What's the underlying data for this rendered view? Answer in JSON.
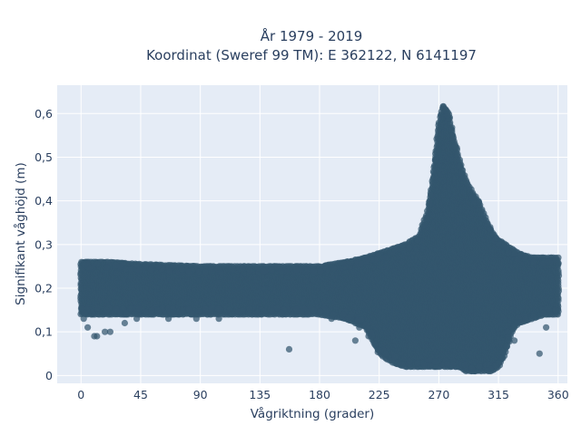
{
  "chart_data": {
    "type": "scatter",
    "title": "År 1979 - 2019",
    "subtitle": "Koordinat (Sweref 99 TM): E 362122, N 6141197",
    "xlabel": "Vågriktning (grader)",
    "ylabel": "Signifikant våghöjd (m)",
    "xlim": [
      -18,
      367
    ],
    "ylim": [
      -0.018,
      0.665
    ],
    "xticks": [
      0,
      45,
      90,
      135,
      180,
      225,
      270,
      315,
      360
    ],
    "xtick_labels": [
      "0",
      "45",
      "90",
      "135",
      "180",
      "225",
      "270",
      "315",
      "360"
    ],
    "yticks": [
      0,
      0.1,
      0.2,
      0.3,
      0.4,
      0.5,
      0.6
    ],
    "ytick_labels": [
      "0",
      "0,1",
      "0,2",
      "0,3",
      "0,4",
      "0,5",
      "0,6"
    ],
    "grid": true,
    "marker_color": "#33566d",
    "background_color": "#e5ecf6",
    "envelope": {
      "x": [
        0,
        20,
        45,
        90,
        135,
        180,
        200,
        215,
        225,
        235,
        245,
        255,
        262,
        266,
        270,
        273,
        275,
        278,
        280,
        285,
        290,
        295,
        300,
        305,
        310,
        315,
        320,
        325,
        330,
        340,
        350,
        360
      ],
      "y_max": [
        0.26,
        0.26,
        0.255,
        0.25,
        0.25,
        0.25,
        0.26,
        0.27,
        0.28,
        0.29,
        0.3,
        0.32,
        0.38,
        0.47,
        0.58,
        0.62,
        0.61,
        0.6,
        0.56,
        0.5,
        0.45,
        0.42,
        0.4,
        0.36,
        0.33,
        0.31,
        0.3,
        0.29,
        0.28,
        0.27,
        0.27,
        0.27
      ],
      "y_min": [
        0.14,
        0.14,
        0.14,
        0.14,
        0.14,
        0.14,
        0.13,
        0.11,
        0.05,
        0.03,
        0.02,
        0.02,
        0.02,
        0.02,
        0.02,
        0.02,
        0.02,
        0.02,
        0.02,
        0.02,
        0.01,
        0.01,
        0.01,
        0.01,
        0.01,
        0.02,
        0.05,
        0.1,
        0.12,
        0.13,
        0.14,
        0.14
      ]
    },
    "outliers": [
      {
        "x": 2,
        "y": 0.13
      },
      {
        "x": 5,
        "y": 0.11
      },
      {
        "x": 10,
        "y": 0.09
      },
      {
        "x": 12,
        "y": 0.09
      },
      {
        "x": 18,
        "y": 0.1
      },
      {
        "x": 22,
        "y": 0.1
      },
      {
        "x": 33,
        "y": 0.12
      },
      {
        "x": 42,
        "y": 0.13
      },
      {
        "x": 66,
        "y": 0.13
      },
      {
        "x": 87,
        "y": 0.13
      },
      {
        "x": 104,
        "y": 0.13
      },
      {
        "x": 136,
        "y": 0.14
      },
      {
        "x": 157,
        "y": 0.06
      },
      {
        "x": 189,
        "y": 0.13
      },
      {
        "x": 207,
        "y": 0.08
      },
      {
        "x": 210,
        "y": 0.11
      },
      {
        "x": 217,
        "y": 0.09
      },
      {
        "x": 322,
        "y": 0.1
      },
      {
        "x": 327,
        "y": 0.08
      },
      {
        "x": 346,
        "y": 0.05
      },
      {
        "x": 351,
        "y": 0.11
      }
    ]
  }
}
